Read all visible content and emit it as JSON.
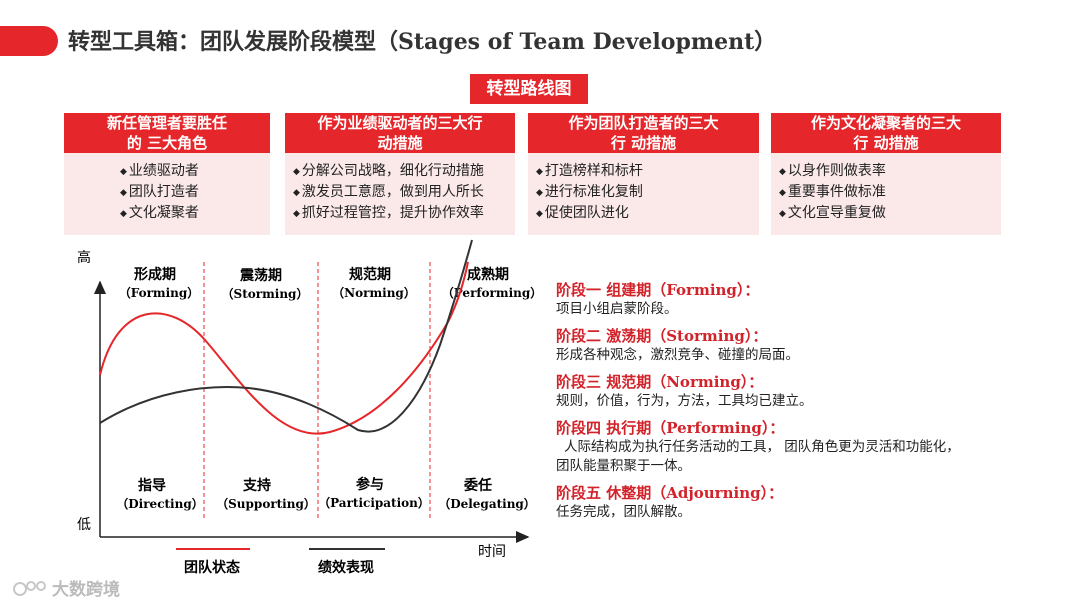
{
  "title": "转型工具箱：团队发展阶段模型（Stages of Team Development）",
  "roadmap_label": "转型路线图",
  "cards": [
    {
      "head": [
        "新任管理者要胜任",
        "的 三大角色"
      ],
      "items": [
        "业绩驱动者",
        "团队打造者",
        "文化凝聚者"
      ]
    },
    {
      "head": [
        "作为业绩驱动者的三大行",
        "动措施"
      ],
      "items": [
        "分解公司战略，细化行动措施",
        "激发员工意愿，做到用人所长",
        "抓好过程管控，提升协作效率"
      ]
    },
    {
      "head": [
        "作为团队打造者的三大",
        "行 动措施"
      ],
      "items": [
        "打造榜样和标杆",
        "进行标准化复制",
        "促使团队进化"
      ]
    },
    {
      "head": [
        "作为文化凝聚者的三大",
        "行 动措施"
      ],
      "items": [
        "以身作则做表率",
        "重要事件做标准",
        "文化宣导重复做"
      ]
    }
  ],
  "diagram": {
    "y_high": "高",
    "y_low": "低",
    "x_label": "时间",
    "phases": [
      {
        "name": "形成期",
        "en": "（Forming）",
        "style": "指导",
        "style_en": "（Directing）"
      },
      {
        "name": "震荡期",
        "en": "（Storming）",
        "style": "支持",
        "style_en": "（Supporting）"
      },
      {
        "name": "规范期",
        "en": "（Norming）",
        "style": "参与",
        "style_en": "（Participation）"
      },
      {
        "name": "成熟期",
        "en": "（Performing）",
        "style": "委任",
        "style_en": "（Delegating）"
      }
    ],
    "legend": [
      {
        "label": "团队状态",
        "color": "#e5262a"
      },
      {
        "label": "绩效表现",
        "color": "#333333"
      }
    ]
  },
  "stages": [
    {
      "title": "阶段一  组建期（Forming）：",
      "desc": "项目小组启蒙阶段。"
    },
    {
      "title": "阶段二  激荡期（Storming）：",
      "desc": "形成各种观念，激烈竞争、碰撞的局面。"
    },
    {
      "title": "阶段三  规范期（Norming）：",
      "desc": "规则，价值，行为，方法，工具均已建立。"
    },
    {
      "title": "阶段四  执行期（Performing）：",
      "desc": "人际结构成为执行任务活动的工具，  团队角色更为灵活和功能化，",
      "desc2": "团队能量积聚于一体。"
    },
    {
      "title": "阶段五  休整期（Adjourning）：",
      "desc": "任务完成，团队解散。"
    }
  ],
  "watermark": "大数跨境",
  "colors": {
    "accent": "#e5262a",
    "card_bg": "#fbe9ea",
    "stage_title": "#d2232a"
  }
}
